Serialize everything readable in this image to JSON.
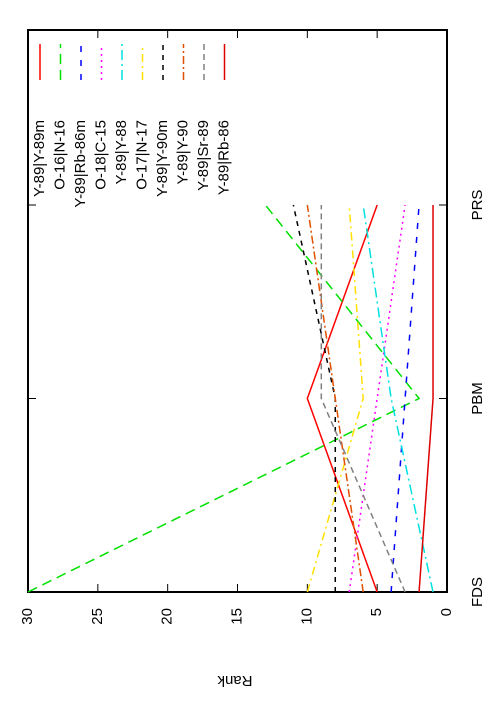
{
  "chart_data": {
    "type": "line",
    "y_label": "Rank",
    "categories": [
      "FDS",
      "PBM",
      "PRS"
    ],
    "ylim": [
      0,
      30
    ],
    "yticks": [
      0,
      5,
      10,
      15,
      20,
      25,
      30
    ],
    "rotated": true,
    "legend": "top-right",
    "series": [
      {
        "name": "Y-89|Y-89m",
        "color": "#ff0000",
        "dash": "none",
        "values": [
          5,
          10,
          5
        ]
      },
      {
        "name": "O-16|N-16",
        "color": "#00e000",
        "dash": "10 6",
        "values": [
          30,
          2,
          13
        ]
      },
      {
        "name": "Y-89|Rb-86m",
        "color": "#0000ff",
        "dash": "6 8",
        "values": [
          4,
          3,
          2
        ]
      },
      {
        "name": "O-18|C-15",
        "color": "#ff00ff",
        "dash": "2 4",
        "values": [
          7,
          5,
          3
        ]
      },
      {
        "name": "Y-89|Y-88",
        "color": "#00e0e0",
        "dash": "10 4 2 4",
        "values": [
          1,
          4,
          6
        ]
      },
      {
        "name": "O-17|N-17",
        "color": "#ffe000",
        "dash": "8 4 2 4",
        "values": [
          10,
          6,
          7
        ]
      },
      {
        "name": "Y-89|Y-90m",
        "color": "#000000",
        "dash": "5 5",
        "values": [
          8,
          8,
          11
        ]
      },
      {
        "name": "Y-89|Y-90",
        "color": "#e05000",
        "dash": "8 3 2 3",
        "values": [
          6,
          8,
          10
        ]
      },
      {
        "name": "Y-89|Sr-89",
        "color": "#808080",
        "dash": "6 4",
        "values": [
          3,
          9,
          9
        ]
      },
      {
        "name": "Y-89|Rb-86",
        "color": "#dd0000",
        "dash": "none",
        "values": [
          2,
          1,
          1
        ]
      }
    ]
  }
}
